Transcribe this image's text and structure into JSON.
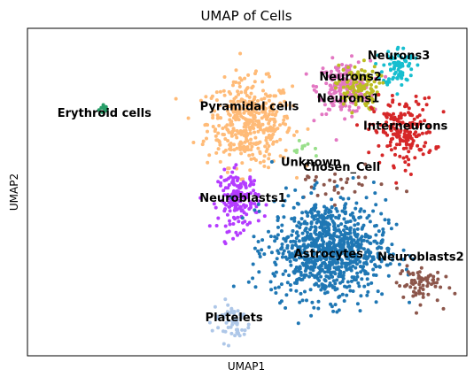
{
  "chart_data": {
    "type": "scatter",
    "title": "UMAP of Cells",
    "xlabel": "UMAP1",
    "ylabel": "UMAP2",
    "xlim": [
      0,
      100
    ],
    "ylim": [
      0,
      100
    ],
    "grid": false,
    "legend": "labels on data",
    "clusters": [
      {
        "name": "Erythroid cells",
        "color": "#2ca02c",
        "dot_color": "#279e68",
        "center": [
          17.5,
          75.5
        ],
        "spread": [
          0.6,
          0.8
        ],
        "n": 14,
        "label_pos": [
          17.5,
          73.0
        ]
      },
      {
        "name": "Pyramidal cells",
        "color": "#ffbb78",
        "center": [
          50.5,
          71.0
        ],
        "spread": [
          4.8,
          6.5
        ],
        "n": 430,
        "label_pos": [
          50.5,
          75.0
        ]
      },
      {
        "name": "Neurons2",
        "color": "#e377c2",
        "center": [
          72.0,
          82.0
        ],
        "spread": [
          3.0,
          4.0
        ],
        "n": 200,
        "label_pos": [
          73.5,
          84.0
        ]
      },
      {
        "name": "Neurons3",
        "color": "#17becf",
        "center": [
          84.5,
          88.5
        ],
        "spread": [
          1.8,
          3.0
        ],
        "n": 80,
        "label_pos": [
          84.5,
          90.5
        ]
      },
      {
        "name": "Neurons1",
        "color": "#bcbd22",
        "center": [
          75.0,
          82.0
        ],
        "spread": [
          2.5,
          3.5
        ],
        "n": 110,
        "label_pos": [
          73.0,
          77.5
        ]
      },
      {
        "name": "Interneurons",
        "color": "#d62728",
        "center": [
          85.5,
          68.5
        ],
        "spread": [
          3.5,
          5.0
        ],
        "n": 190,
        "label_pos": [
          86.0,
          69.0
        ]
      },
      {
        "name": "Neuroblasts1",
        "color": "#b43cff",
        "center": [
          48.0,
          47.5
        ],
        "spread": [
          2.3,
          4.5
        ],
        "n": 170,
        "label_pos": [
          49.0,
          47.0
        ]
      },
      {
        "name": "Unknown",
        "color": "#98df8a",
        "center": [
          63.5,
          63.0
        ],
        "spread": [
          1.5,
          1.2
        ],
        "n": 10,
        "label_pos": [
          64.5,
          58.0
        ]
      },
      {
        "name": "Chosen_Cell",
        "color": "#8c564b",
        "center": [
          70.0,
          52.0
        ],
        "spread": [
          6.0,
          2.5
        ],
        "n": 30,
        "label_pos": [
          71.5,
          56.5
        ]
      },
      {
        "name": "Astrocytes",
        "color": "#1f77b4",
        "center": [
          68.5,
          32.5
        ],
        "spread": [
          6.5,
          7.5
        ],
        "n": 900,
        "label_pos": [
          68.5,
          30.0
        ]
      },
      {
        "name": "Neuroblasts2",
        "color": "#8c564b",
        "center": [
          89.0,
          22.0
        ],
        "spread": [
          2.5,
          3.0
        ],
        "n": 70,
        "label_pos": [
          89.5,
          29.0
        ]
      },
      {
        "name": "Platelets",
        "color": "#aec7e8",
        "center": [
          46.5,
          10.5
        ],
        "spread": [
          2.2,
          3.2
        ],
        "n": 55,
        "label_pos": [
          47.0,
          10.5
        ]
      }
    ]
  }
}
